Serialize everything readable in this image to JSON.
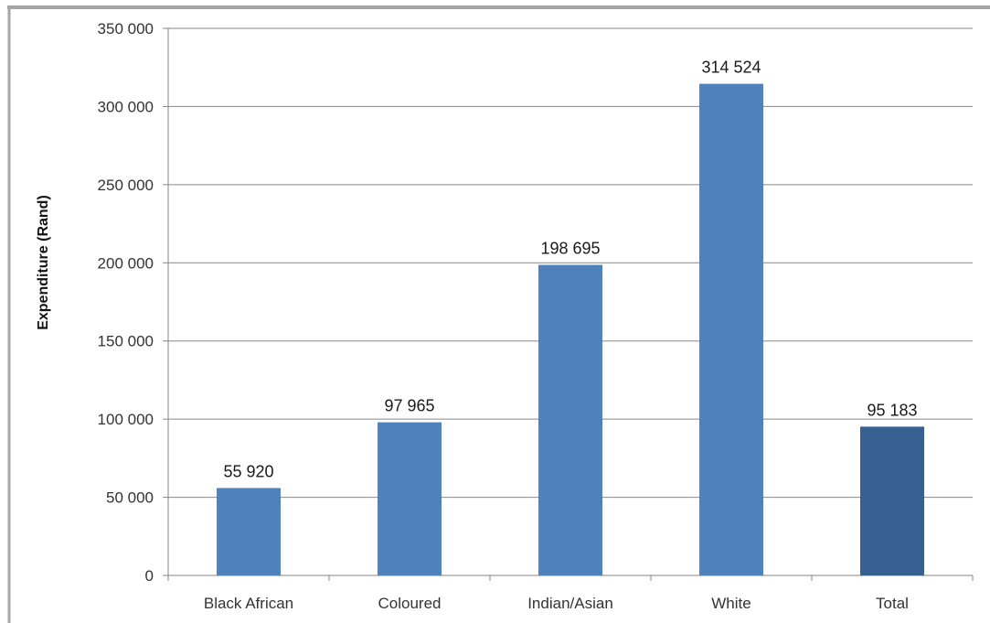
{
  "chart_data": {
    "type": "bar",
    "title": "",
    "xlabel": "",
    "ylabel": "Expenditure (Rand)",
    "categories": [
      "Black African",
      "Coloured",
      "Indian/Asian",
      "White",
      "Total"
    ],
    "values": [
      55920,
      97965,
      198695,
      314524,
      95183
    ],
    "value_labels": [
      "55 920",
      "97 965",
      "198 695",
      "314 524",
      "95 183"
    ],
    "ylim": [
      0,
      350000
    ],
    "yticks": [
      0,
      50000,
      100000,
      150000,
      200000,
      250000,
      300000,
      350000
    ],
    "ytick_labels": [
      "0",
      "50 000",
      "100 000",
      "150 000",
      "200 000",
      "250 000",
      "300 000",
      "350 000"
    ],
    "grid": true,
    "legend": "none",
    "colors": {
      "bar": "#4F81BD",
      "highlight_bar": "#376092",
      "highlight_index": 4,
      "grid": "#868686",
      "frame": "#a6a6a6"
    }
  }
}
